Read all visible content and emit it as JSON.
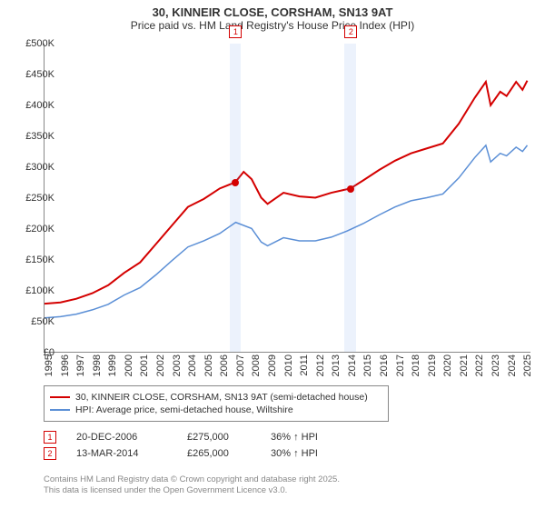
{
  "title": {
    "line1": "30, KINNEIR CLOSE, CORSHAM, SN13 9AT",
    "line2": "Price paid vs. HM Land Registry's House Price Index (HPI)"
  },
  "chart": {
    "type": "line",
    "background_color": "#ffffff",
    "grid": false,
    "xlim": [
      1995,
      2025.5
    ],
    "ylim": [
      0,
      500000
    ],
    "ytick_step": 50000,
    "yticks": [
      {
        "v": 0,
        "label": "£0"
      },
      {
        "v": 50000,
        "label": "£50K"
      },
      {
        "v": 100000,
        "label": "£100K"
      },
      {
        "v": 150000,
        "label": "£150K"
      },
      {
        "v": 200000,
        "label": "£200K"
      },
      {
        "v": 250000,
        "label": "£250K"
      },
      {
        "v": 300000,
        "label": "£300K"
      },
      {
        "v": 350000,
        "label": "£350K"
      },
      {
        "v": 400000,
        "label": "£400K"
      },
      {
        "v": 450000,
        "label": "£450K"
      },
      {
        "v": 500000,
        "label": "£500K"
      }
    ],
    "xticks": [
      1995,
      1996,
      1997,
      1998,
      1999,
      2000,
      2001,
      2002,
      2003,
      2004,
      2005,
      2006,
      2007,
      2008,
      2009,
      2010,
      2011,
      2012,
      2013,
      2014,
      2015,
      2016,
      2017,
      2018,
      2019,
      2020,
      2021,
      2022,
      2023,
      2024,
      2025
    ],
    "highlight_bands": [
      {
        "from": 2006.6,
        "to": 2007.3,
        "color": "rgba(100,150,230,0.12)"
      },
      {
        "from": 2013.8,
        "to": 2014.5,
        "color": "rgba(100,150,230,0.12)"
      }
    ],
    "series": [
      {
        "name": "property",
        "label": "30, KINNEIR CLOSE, CORSHAM, SN13 9AT (semi-detached house)",
        "color": "#d40000",
        "line_width": 2,
        "data": [
          [
            1995,
            78000
          ],
          [
            1996,
            80000
          ],
          [
            1997,
            86000
          ],
          [
            1998,
            95000
          ],
          [
            1999,
            108000
          ],
          [
            2000,
            128000
          ],
          [
            2001,
            145000
          ],
          [
            2002,
            175000
          ],
          [
            2003,
            205000
          ],
          [
            2004,
            235000
          ],
          [
            2005,
            248000
          ],
          [
            2006,
            265000
          ],
          [
            2006.97,
            275000
          ],
          [
            2007.5,
            292000
          ],
          [
            2008,
            280000
          ],
          [
            2008.6,
            250000
          ],
          [
            2009,
            240000
          ],
          [
            2010,
            258000
          ],
          [
            2011,
            252000
          ],
          [
            2012,
            250000
          ],
          [
            2013,
            258000
          ],
          [
            2014.2,
            265000
          ],
          [
            2015,
            278000
          ],
          [
            2016,
            295000
          ],
          [
            2017,
            310000
          ],
          [
            2018,
            322000
          ],
          [
            2019,
            330000
          ],
          [
            2020,
            338000
          ],
          [
            2021,
            370000
          ],
          [
            2022,
            412000
          ],
          [
            2022.7,
            438000
          ],
          [
            2023,
            400000
          ],
          [
            2023.6,
            422000
          ],
          [
            2024,
            415000
          ],
          [
            2024.6,
            438000
          ],
          [
            2025,
            425000
          ],
          [
            2025.3,
            440000
          ]
        ]
      },
      {
        "name": "hpi",
        "label": "HPI: Average price, semi-detached house, Wiltshire",
        "color": "#5b8fd6",
        "line_width": 1.5,
        "data": [
          [
            1995,
            55000
          ],
          [
            1996,
            57000
          ],
          [
            1997,
            61000
          ],
          [
            1998,
            68000
          ],
          [
            1999,
            77000
          ],
          [
            2000,
            92000
          ],
          [
            2001,
            104000
          ],
          [
            2002,
            125000
          ],
          [
            2003,
            148000
          ],
          [
            2004,
            170000
          ],
          [
            2005,
            180000
          ],
          [
            2006,
            192000
          ],
          [
            2007,
            210000
          ],
          [
            2008,
            200000
          ],
          [
            2008.6,
            178000
          ],
          [
            2009,
            172000
          ],
          [
            2010,
            185000
          ],
          [
            2011,
            180000
          ],
          [
            2012,
            180000
          ],
          [
            2013,
            186000
          ],
          [
            2014,
            196000
          ],
          [
            2015,
            208000
          ],
          [
            2016,
            222000
          ],
          [
            2017,
            235000
          ],
          [
            2018,
            245000
          ],
          [
            2019,
            250000
          ],
          [
            2020,
            256000
          ],
          [
            2021,
            282000
          ],
          [
            2022,
            315000
          ],
          [
            2022.7,
            335000
          ],
          [
            2023,
            308000
          ],
          [
            2023.6,
            322000
          ],
          [
            2024,
            318000
          ],
          [
            2024.6,
            332000
          ],
          [
            2025,
            325000
          ],
          [
            2025.3,
            335000
          ]
        ]
      }
    ],
    "sale_points": [
      {
        "n": "1",
        "x": 2006.97,
        "y": 275000,
        "color": "#d40000"
      },
      {
        "n": "2",
        "x": 2014.2,
        "y": 265000,
        "color": "#d40000"
      }
    ]
  },
  "legend": {
    "items": [
      {
        "color": "#d40000",
        "label": "30, KINNEIR CLOSE, CORSHAM, SN13 9AT (semi-detached house)"
      },
      {
        "color": "#5b8fd6",
        "label": "HPI: Average price, semi-detached house, Wiltshire"
      }
    ]
  },
  "sales": [
    {
      "n": "1",
      "border": "#d40000",
      "date": "20-DEC-2006",
      "price": "£275,000",
      "diff": "36% ↑ HPI"
    },
    {
      "n": "2",
      "border": "#d40000",
      "date": "13-MAR-2014",
      "price": "£265,000",
      "diff": "30% ↑ HPI"
    }
  ],
  "footer": {
    "line1": "Contains HM Land Registry data © Crown copyright and database right 2025.",
    "line2": "This data is licensed under the Open Government Licence v3.0."
  }
}
